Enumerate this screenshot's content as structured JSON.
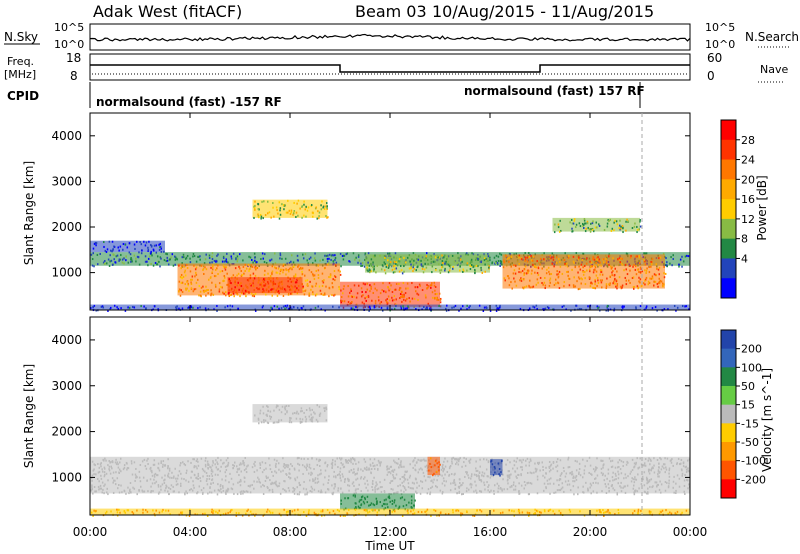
{
  "header": {
    "site": "Adak West (fitACF)",
    "beam": "Beam 03",
    "dates": "10/Aug/2015 - 11/Aug/2015"
  },
  "top_panels": {
    "nsky_label": "N.Sky",
    "nsearch_label": "N.Search",
    "freq_label_line1": "Freq.",
    "freq_label_line2": "[MHz]",
    "nave_label": "Nave",
    "cpid_label": "CPID",
    "noise_ticks_left": [
      "10^5",
      "10^0"
    ],
    "noise_ticks_right": [
      "10^5",
      "10^0"
    ],
    "freq_ticks": [
      "18",
      "8"
    ],
    "nave_ticks": [
      "60",
      "0"
    ],
    "cpid_segments": [
      {
        "start_hour": 0,
        "text": "normalsound (fast) -157 RF"
      },
      {
        "start_hour": 22,
        "text": "normalsound (fast) 157 RF"
      }
    ],
    "nave_steps": [
      {
        "from_hour": 0,
        "to_hour": 10,
        "level": "high"
      },
      {
        "from_hour": 10,
        "to_hour": 18,
        "level": "low"
      },
      {
        "from_hour": 18,
        "to_hour": 24,
        "level": "high"
      }
    ]
  },
  "power_panel": {
    "ylabel": "Slant Range [km]",
    "cbar_label": "Power [dB]",
    "cbar_ticks": [
      "28",
      "24",
      "20",
      "16",
      "12",
      "8",
      "4"
    ],
    "cbar_colors": [
      "#ff0000",
      "#ff3300",
      "#ff7700",
      "#ffaa00",
      "#ffcc00",
      "#88bb44",
      "#228844",
      "#2244bb",
      "#0000ff"
    ]
  },
  "velocity_panel": {
    "ylabel": "Slant Range [km]",
    "cbar_label": "Velocity [m s^-1]",
    "cbar_ticks": [
      "200",
      "100",
      "50",
      "15",
      "-15",
      "-50",
      "-100",
      "-200"
    ],
    "cbar_colors": [
      "#2244aa",
      "#3366bb",
      "#228844",
      "#66cc44",
      "#bbbbbb",
      "#ffcc00",
      "#ff9900",
      "#ff5500",
      "#ff0000"
    ]
  },
  "xaxis": {
    "label": "Time UT",
    "ticks": [
      "00:00",
      "04:00",
      "08:00",
      "12:00",
      "16:00",
      "20:00",
      "00:00"
    ]
  },
  "chart_data": [
    {
      "type": "heatmap",
      "title": "Power",
      "xlabel": "Time UT",
      "ylabel": "Slant Range [km]",
      "xlim": [
        0,
        24
      ],
      "ylim": [
        180,
        4500
      ],
      "yticks": [
        1000,
        2000,
        3000,
        4000
      ],
      "colorbar_label": "Power [dB]",
      "colorbar_ticks": [
        4,
        8,
        12,
        16,
        20,
        24,
        28
      ],
      "bands": [
        {
          "t0": 0,
          "t1": 24,
          "r0": 1150,
          "r1": 1450,
          "level": 10
        },
        {
          "t0": 0,
          "t1": 3,
          "r0": 1450,
          "r1": 1700,
          "level": 6
        },
        {
          "t0": 3.5,
          "t1": 10,
          "r0": 500,
          "r1": 1200,
          "level": 22
        },
        {
          "t0": 5.5,
          "t1": 8.5,
          "r0": 550,
          "r1": 900,
          "level": 28
        },
        {
          "t0": 6.5,
          "t1": 9.5,
          "r0": 2200,
          "r1": 2600,
          "level": 16
        },
        {
          "t0": 10,
          "t1": 14,
          "r0": 250,
          "r1": 800,
          "level": 26
        },
        {
          "t0": 11,
          "t1": 16,
          "r0": 1000,
          "r1": 1400,
          "level": 14
        },
        {
          "t0": 16.5,
          "t1": 23,
          "r0": 650,
          "r1": 1400,
          "level": 24
        },
        {
          "t0": 18.5,
          "t1": 22,
          "r0": 1900,
          "r1": 2200,
          "level": 14
        },
        {
          "t0": 0,
          "t1": 24,
          "r0": 180,
          "r1": 300,
          "level": 6
        }
      ]
    },
    {
      "type": "heatmap",
      "title": "Velocity",
      "xlabel": "Time UT",
      "ylabel": "Slant Range [km]",
      "xlim": [
        0,
        24
      ],
      "ylim": [
        180,
        4500
      ],
      "yticks": [
        1000,
        2000,
        3000,
        4000
      ],
      "colorbar_label": "Velocity [m s^-1]",
      "colorbar_ticks": [
        -200,
        -100,
        -50,
        -15,
        15,
        50,
        100,
        200
      ],
      "bands": [
        {
          "t0": 0,
          "t1": 24,
          "r0": 650,
          "r1": 1450,
          "level": 0
        },
        {
          "t0": 6.5,
          "t1": 9.5,
          "r0": 2200,
          "r1": 2600,
          "level": 0
        },
        {
          "t0": 10,
          "t1": 13,
          "r0": 300,
          "r1": 650,
          "level": 60
        },
        {
          "t0": 13.5,
          "t1": 14,
          "r0": 1050,
          "r1": 1450,
          "level": -80
        },
        {
          "t0": 16,
          "t1": 16.5,
          "r0": 1050,
          "r1": 1400,
          "level": 200
        },
        {
          "t0": 0,
          "t1": 24,
          "r0": 180,
          "r1": 320,
          "level": -30
        }
      ]
    }
  ]
}
